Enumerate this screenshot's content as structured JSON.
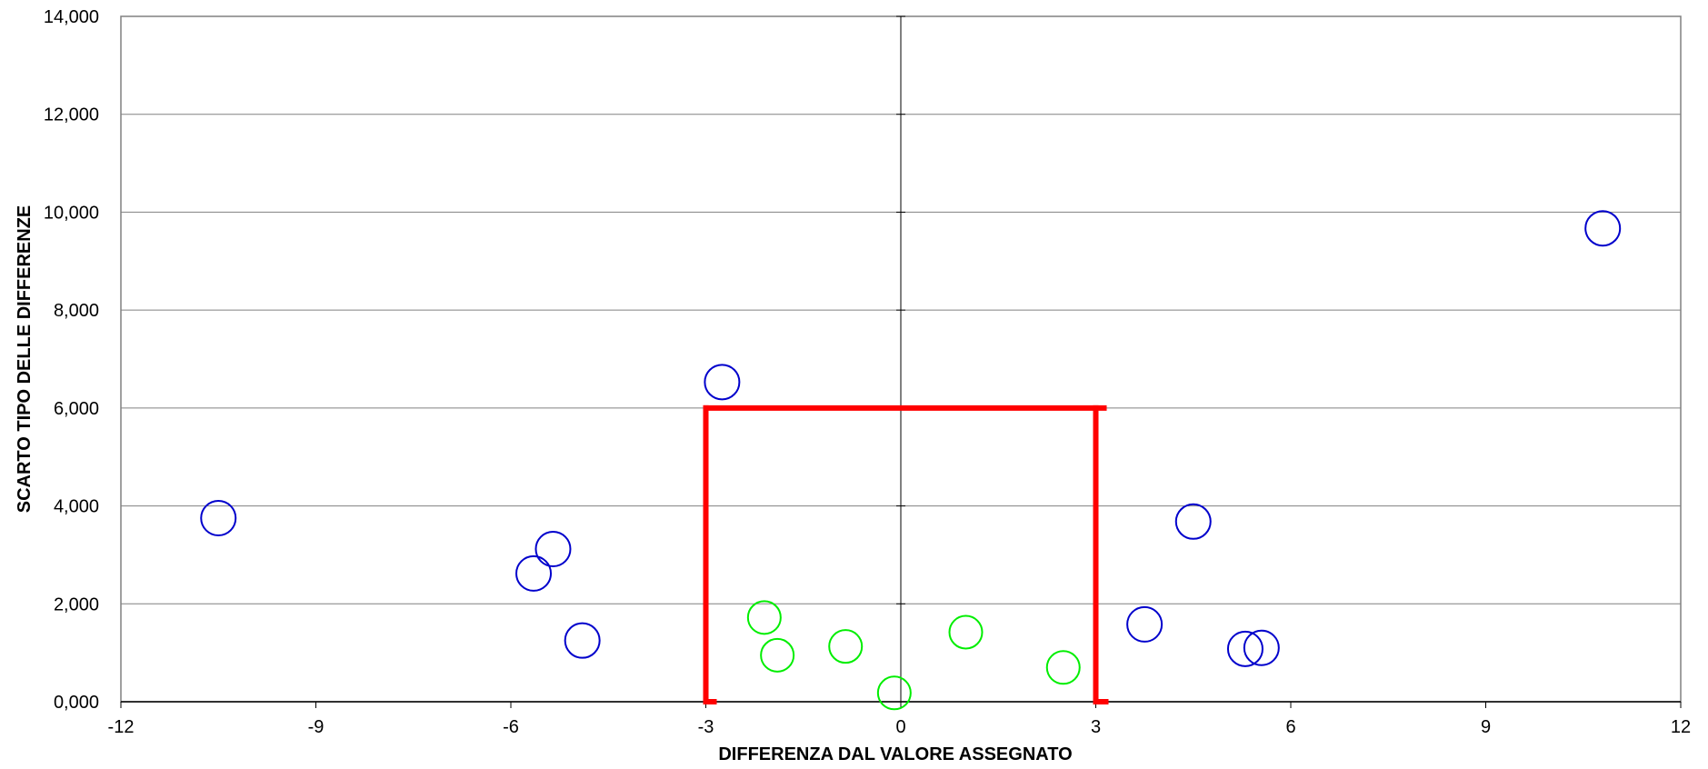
{
  "chart_data": {
    "type": "scatter",
    "title": "",
    "xlabel": "DIFFERENZA DAL VALORE ASSEGNATO",
    "ylabel": "SCARTO TIPO DELLE DIFFERENZE",
    "xlim": [
      -12,
      12
    ],
    "ylim": [
      0,
      14
    ],
    "x_ticks": [
      -12,
      -9,
      -6,
      -3,
      0,
      3,
      6,
      9,
      12
    ],
    "x_tick_labels": [
      "-12",
      "-9",
      "-6",
      "-3",
      "0",
      "3",
      "6",
      "9",
      "12"
    ],
    "y_ticks": [
      0,
      2,
      4,
      6,
      8,
      10,
      12,
      14
    ],
    "y_tick_labels": [
      "0,000",
      "2,000",
      "4,000",
      "6,000",
      "8,000",
      "10,000",
      "12,000",
      "14,000"
    ],
    "grid": "horizontal",
    "legend": "none",
    "series": [
      {
        "color": "#0000cc",
        "marker": "open-circle",
        "points": [
          {
            "x": -10.5,
            "y": 3.75
          },
          {
            "x": -5.65,
            "y": 2.62
          },
          {
            "x": -5.35,
            "y": 3.12
          },
          {
            "x": -4.9,
            "y": 1.25
          },
          {
            "x": -2.75,
            "y": 6.53
          },
          {
            "x": 3.75,
            "y": 1.58
          },
          {
            "x": 4.5,
            "y": 3.68
          },
          {
            "x": 5.3,
            "y": 1.08
          },
          {
            "x": 5.55,
            "y": 1.1
          },
          {
            "x": 10.8,
            "y": 9.67
          }
        ]
      },
      {
        "color": "#00ee00",
        "marker": "open-circle",
        "points": [
          {
            "x": -2.1,
            "y": 1.72
          },
          {
            "x": -1.9,
            "y": 0.95
          },
          {
            "x": -0.85,
            "y": 1.13
          },
          {
            "x": -0.1,
            "y": 0.18
          },
          {
            "x": 1.0,
            "y": 1.42
          },
          {
            "x": 2.5,
            "y": 0.7
          }
        ]
      }
    ],
    "acceptance_box": {
      "color": "#ff0000",
      "x_min": -3,
      "x_max": 3,
      "y_max": 6
    },
    "axis_lines": {
      "vertical_at_x": 0
    }
  }
}
